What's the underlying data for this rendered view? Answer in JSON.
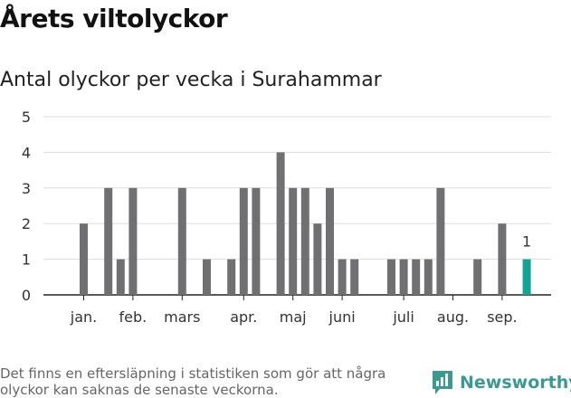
{
  "title": "Årets viltolyckor",
  "subtitle": "Antal olyckor per vecka i Surahammar",
  "footnote": "Det finns en eftersläpning i statistiken som gör att några olyckor kan saknas de senaste veckorna.",
  "brand": "Newsworthy",
  "colors": {
    "bar": "#706f72",
    "highlight": "#12a595",
    "grid": "#dddddd",
    "brand": "#3a9a92"
  },
  "chart_data": {
    "type": "bar",
    "x": [
      1,
      2,
      3,
      4,
      5,
      6,
      7,
      8,
      9,
      10,
      11,
      12,
      13,
      14,
      15,
      16,
      17,
      18,
      19,
      20,
      21,
      22,
      23,
      24,
      25,
      26,
      27,
      28,
      29,
      30,
      31,
      32,
      33,
      34,
      35,
      36,
      37,
      38,
      39
    ],
    "values": [
      0,
      2,
      0,
      3,
      1,
      3,
      0,
      0,
      0,
      3,
      0,
      1,
      0,
      1,
      3,
      3,
      0,
      4,
      3,
      3,
      2,
      3,
      1,
      1,
      0,
      0,
      1,
      1,
      1,
      1,
      3,
      0,
      0,
      1,
      0,
      2,
      0,
      1,
      0
    ],
    "highlight_index": 37,
    "highlight_label": "1",
    "ylim": [
      0,
      5
    ],
    "yticks": [
      "0",
      "1",
      "2",
      "3",
      "4",
      "5"
    ],
    "month_labels": [
      {
        "label": "jan.",
        "week": 2
      },
      {
        "label": "feb.",
        "week": 6
      },
      {
        "label": "mars",
        "week": 10
      },
      {
        "label": "apr.",
        "week": 15
      },
      {
        "label": "maj",
        "week": 19
      },
      {
        "label": "juni",
        "week": 23
      },
      {
        "label": "juli",
        "week": 28
      },
      {
        "label": "aug.",
        "week": 32
      },
      {
        "label": "sep.",
        "week": 36
      }
    ],
    "grid": true,
    "xlabel": "",
    "ylabel": ""
  }
}
